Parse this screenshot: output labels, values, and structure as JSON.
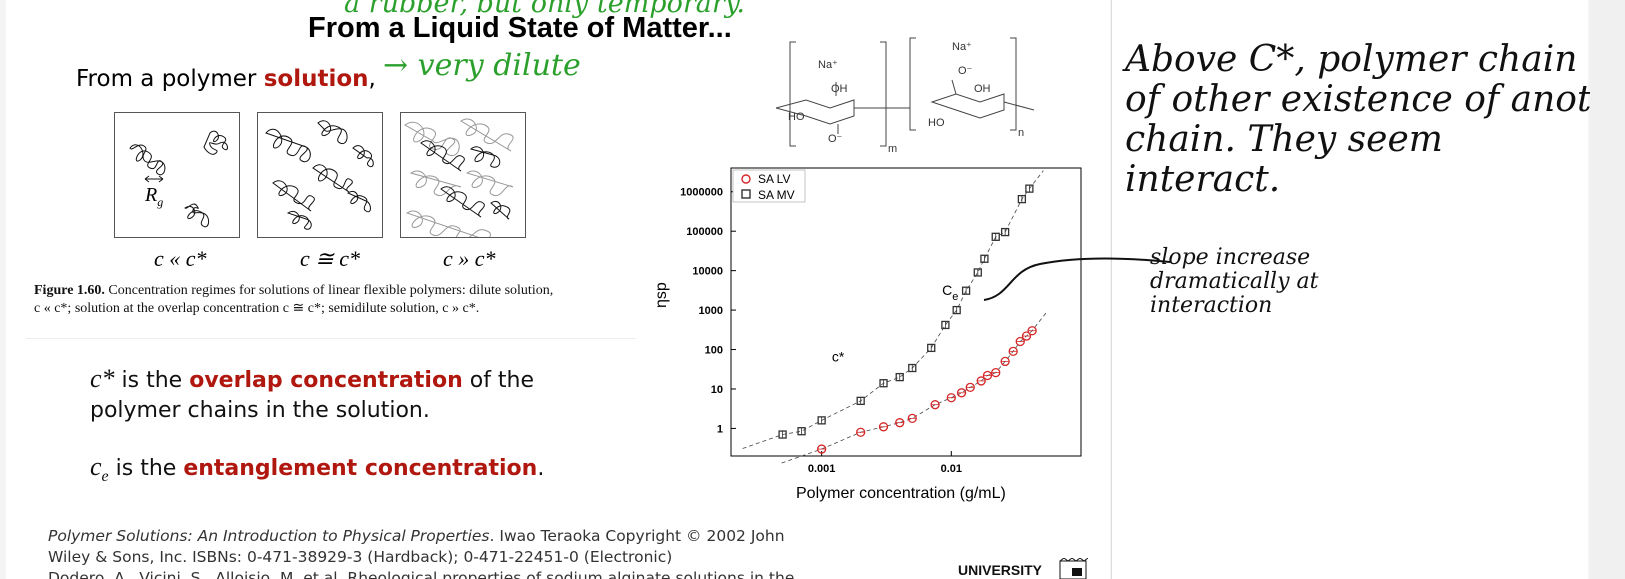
{
  "slide": {
    "title": "From a Liquid State of Matter...",
    "lead_text": "From a polymer ",
    "lead_highlight": "solution",
    "lead_comma": ",",
    "annotation_top": "a rubber, but only temporary.",
    "annotation_lead": "→ very dilute",
    "figure": {
      "rg_label": "R",
      "rg_sub": "g",
      "regimes": [
        "c « c*",
        "c ≅ c*",
        "c » c*"
      ],
      "caption_bold": "Figure 1.60.",
      "caption_line1": "Concentration regimes for solutions of linear flexible polymers: dilute solution,",
      "caption_line2": "c « c*; solution at the overlap concentration c ≅ c*; semidilute solution, c » c*."
    },
    "def1_symbol": "c*",
    "def1_pre": " is the ",
    "def1_highlight": "overlap concentration",
    "def1_post": " of the",
    "def1_line2": "polymer chains in the solution.",
    "def2_symbol": "c",
    "def2_sub": "e",
    "def2_pre": " is the ",
    "def2_highlight": "entanglement concentration",
    "def2_post": ".",
    "ref_line1_italic": "Polymer Solutions: An Introduction to Physical Properties",
    "ref_line1_rest": ". Iwao Teraoka Copyright © 2002 John",
    "ref_line2": "Wiley & Sons, Inc. ISBNs: 0-471-38929-3 (Hardback); 0-471-22451-0 (Electronic)",
    "ref_line3": "Dodero, A., Vicini, S., Alloisio, M. et al. Rheological properties of sodium alginate solutions in the",
    "university_label": "UNIVERSITY",
    "chem": {
      "na1": "Na⁺",
      "na2": "Na⁺",
      "oh1": "OH",
      "oh2": "OH",
      "ho1": "HO",
      "ho2": "HO",
      "o_minus": "O⁻",
      "m": "m",
      "n": "n"
    }
  },
  "chart_data": {
    "type": "scatter",
    "xlabel": "Polymer concentration (g/mL)",
    "ylabel": "ηsp",
    "xscale": "log",
    "yscale": "log",
    "xlim": [
      0.0002,
      0.1
    ],
    "ylim": [
      0.2,
      4000000
    ],
    "x_ticks": [
      "0.001",
      "0.01"
    ],
    "y_ticks": [
      "1",
      "10",
      "100",
      "1000",
      "10000",
      "100000",
      "1000000"
    ],
    "series": [
      {
        "name": "SA LV",
        "marker": "circle",
        "color": "#d62728",
        "points": [
          [
            0.001,
            0.3
          ],
          [
            0.002,
            0.8
          ],
          [
            0.003,
            1.1
          ],
          [
            0.004,
            1.4
          ],
          [
            0.005,
            1.8
          ],
          [
            0.0075,
            4
          ],
          [
            0.01,
            6
          ],
          [
            0.012,
            8
          ],
          [
            0.014,
            11
          ],
          [
            0.017,
            16
          ],
          [
            0.019,
            22
          ],
          [
            0.022,
            26
          ],
          [
            0.026,
            50
          ],
          [
            0.03,
            90
          ],
          [
            0.034,
            160
          ],
          [
            0.038,
            220
          ],
          [
            0.042,
            300
          ]
        ]
      },
      {
        "name": "SA MV",
        "marker": "square",
        "color": "#333333",
        "points": [
          [
            0.0005,
            0.7
          ],
          [
            0.0007,
            0.85
          ],
          [
            0.001,
            1.6
          ],
          [
            0.002,
            5
          ],
          [
            0.003,
            14
          ],
          [
            0.004,
            20
          ],
          [
            0.005,
            34
          ],
          [
            0.007,
            110
          ],
          [
            0.009,
            420
          ],
          [
            0.011,
            1000
          ],
          [
            0.013,
            3100
          ],
          [
            0.016,
            9000
          ],
          [
            0.018,
            20000
          ],
          [
            0.022,
            72000
          ],
          [
            0.026,
            95000
          ],
          [
            0.035,
            650000
          ],
          [
            0.04,
            1200000
          ]
        ]
      }
    ],
    "annotations": [
      {
        "text": "c*",
        "x": 0.0012,
        "y": 50
      },
      {
        "text": "C",
        "sub": "e",
        "x": 0.0085,
        "y": 2400
      }
    ],
    "legend_position": "top-left"
  },
  "notes": {
    "handwriting": [
      "Above C*, polymer chain",
      "of other existence of another",
      "chain. They seem",
      "interact."
    ],
    "callout": [
      "slope increase",
      "dramatically at",
      "interaction"
    ]
  }
}
